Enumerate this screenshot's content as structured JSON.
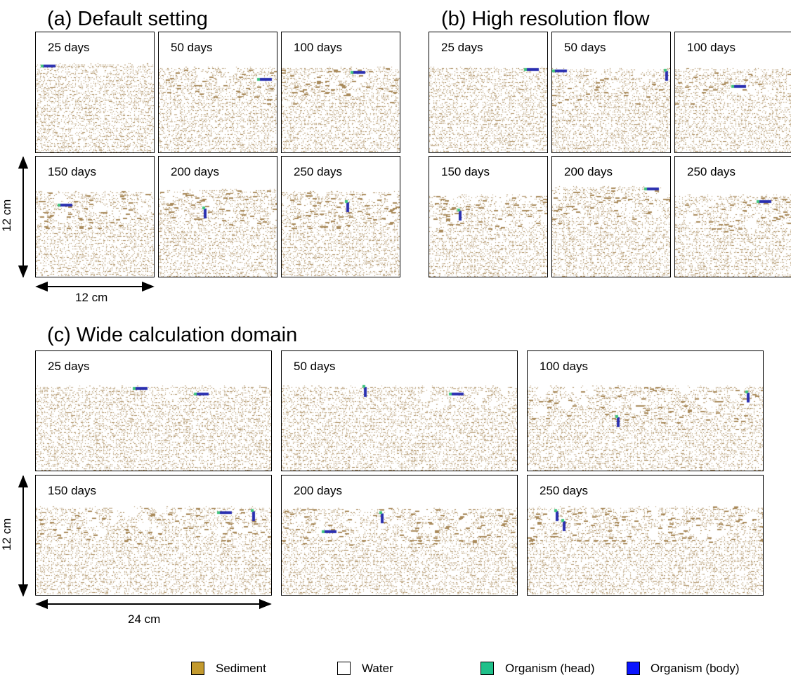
{
  "sections": {
    "a": {
      "title": "(a) Default setting"
    },
    "b": {
      "title": "(b) High resolution flow"
    },
    "c": {
      "title": "(c) Wide calculation domain"
    }
  },
  "panels": {
    "a": [
      "25 days",
      "50 days",
      "100 days",
      "150 days",
      "200 days",
      "250 days"
    ],
    "b": [
      "25 days",
      "50 days",
      "100 days",
      "150 days",
      "200 days",
      "250 days"
    ],
    "c": [
      "25 days",
      "50 days",
      "100 days",
      "150 days",
      "200 days",
      "250 days"
    ]
  },
  "dimensions": {
    "a_height": "12 cm",
    "a_width": "12 cm",
    "c_height": "12 cm",
    "c_width": "24 cm"
  },
  "legend": [
    {
      "label": "Sediment",
      "color": "#c39a2e"
    },
    {
      "label": "Water",
      "color": "#ffffff"
    },
    {
      "label": "Organism (head)",
      "color": "#1fc08a"
    },
    {
      "label": "Organism (body)",
      "color": "#0a14ff"
    }
  ],
  "colors": {
    "sediment": "#a8895a",
    "organism_head": "#3fc47e",
    "organism_body": "#2a2fb0"
  }
}
